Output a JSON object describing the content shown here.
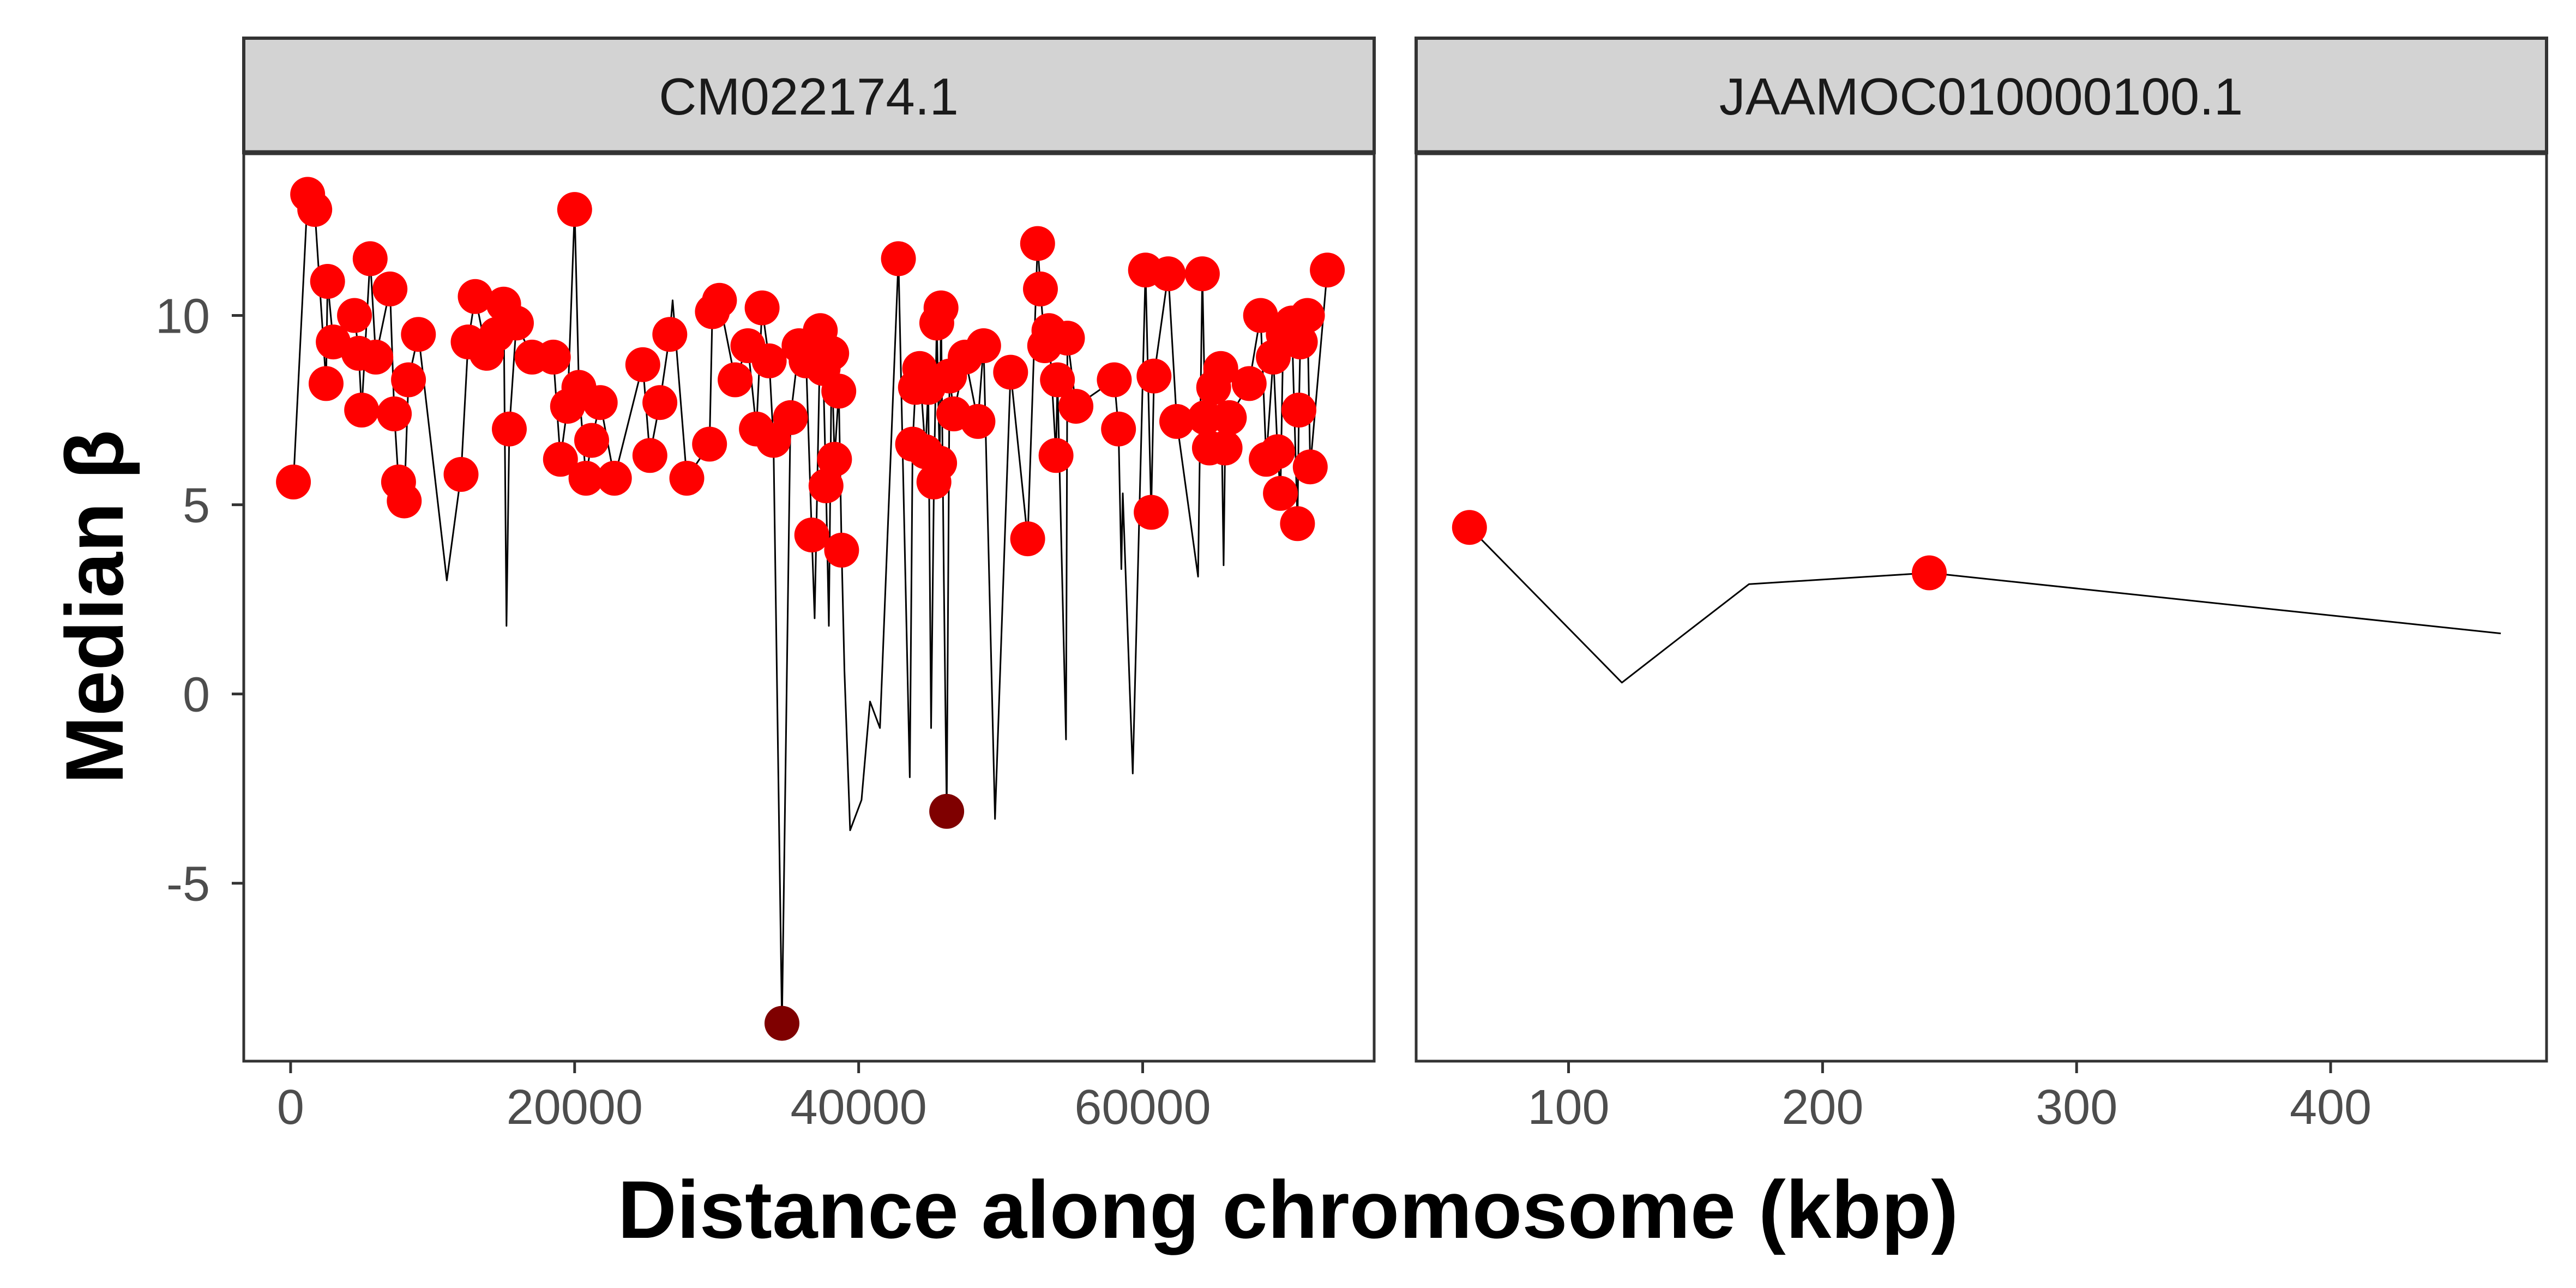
{
  "chart_data": {
    "type": "line",
    "xlabel": "Distance along chromosome (kbp)",
    "ylabel": "Median β",
    "ylim": [
      -9.7,
      14.3
    ],
    "yticks": [
      -5,
      0,
      5,
      10
    ],
    "colors": {
      "point": "#ff0000",
      "point_negative": "#7f0000",
      "line": "#000000",
      "strip": "#d3d3d3"
    },
    "panels": [
      {
        "name": "CM022174.1",
        "xlim": [
          -3300,
          76300
        ],
        "xticks": [
          0,
          20000,
          40000,
          60000
        ],
        "line": [
          [
            200,
            5.6
          ],
          [
            1200,
            13.2
          ],
          [
            1700,
            12.8
          ],
          [
            2500,
            8.2
          ],
          [
            2600,
            10.9
          ],
          [
            3000,
            9.3
          ],
          [
            4500,
            10.0
          ],
          [
            4800,
            9.0
          ],
          [
            5000,
            7.5
          ],
          [
            5600,
            11.5
          ],
          [
            6000,
            8.9
          ],
          [
            7000,
            10.7
          ],
          [
            7300,
            7.4
          ],
          [
            7600,
            5.6
          ],
          [
            8000,
            5.1
          ],
          [
            8300,
            8.3
          ],
          [
            9000,
            9.5
          ],
          [
            11000,
            3.0
          ],
          [
            12000,
            5.8
          ],
          [
            12500,
            9.3
          ],
          [
            13000,
            10.5
          ],
          [
            13800,
            9.0
          ],
          [
            14500,
            9.5
          ],
          [
            15000,
            10.3
          ],
          [
            15200,
            1.8
          ],
          [
            15400,
            7.0
          ],
          [
            15900,
            9.8
          ],
          [
            17000,
            8.9
          ],
          [
            18500,
            8.9
          ],
          [
            19000,
            6.2
          ],
          [
            19500,
            7.6
          ],
          [
            20000,
            12.8
          ],
          [
            20300,
            8.1
          ],
          [
            20800,
            5.7
          ],
          [
            21200,
            6.7
          ],
          [
            21800,
            7.7
          ],
          [
            22800,
            5.7
          ],
          [
            24800,
            8.7
          ],
          [
            25300,
            6.3
          ],
          [
            26000,
            7.7
          ],
          [
            26700,
            9.5
          ],
          [
            26900,
            10.4
          ],
          [
            27900,
            5.7
          ],
          [
            29500,
            6.6
          ],
          [
            29700,
            10.1
          ],
          [
            30200,
            10.4
          ],
          [
            31300,
            8.3
          ],
          [
            32200,
            9.2
          ],
          [
            32800,
            7.0
          ],
          [
            33200,
            10.2
          ],
          [
            33700,
            8.8
          ],
          [
            34000,
            6.7
          ],
          [
            34600,
            -8.7
          ],
          [
            35200,
            7.3
          ],
          [
            35800,
            9.2
          ],
          [
            36300,
            8.8
          ],
          [
            36700,
            4.2
          ],
          [
            36900,
            2.0
          ],
          [
            37300,
            9.6
          ],
          [
            37500,
            8.6
          ],
          [
            37700,
            5.5
          ],
          [
            37900,
            1.8
          ],
          [
            38100,
            9.0
          ],
          [
            38300,
            6.2
          ],
          [
            38600,
            8.0
          ],
          [
            38800,
            3.8
          ],
          [
            39000,
            0.6
          ],
          [
            39400,
            -3.6
          ],
          [
            40200,
            -2.8
          ],
          [
            40800,
            -0.2
          ],
          [
            41500,
            -0.9
          ],
          [
            42800,
            11.5
          ],
          [
            43600,
            -2.2
          ],
          [
            43800,
            6.6
          ],
          [
            44000,
            8.1
          ],
          [
            44300,
            8.6
          ],
          [
            44700,
            6.4
          ],
          [
            44900,
            8.1
          ],
          [
            45100,
            -0.9
          ],
          [
            45300,
            5.6
          ],
          [
            45500,
            9.8
          ],
          [
            45700,
            6.1
          ],
          [
            45800,
            10.2
          ],
          [
            46000,
            3.0
          ],
          [
            46200,
            -3.1
          ],
          [
            46400,
            8.4
          ],
          [
            46700,
            7.4
          ],
          [
            47500,
            8.9
          ],
          [
            48400,
            7.2
          ],
          [
            48800,
            9.2
          ],
          [
            49600,
            -3.3
          ],
          [
            50700,
            8.5
          ],
          [
            51900,
            4.1
          ],
          [
            52600,
            11.9
          ],
          [
            52800,
            10.7
          ],
          [
            53100,
            9.2
          ],
          [
            53400,
            9.6
          ],
          [
            53900,
            6.3
          ],
          [
            54000,
            8.3
          ],
          [
            54600,
            -1.2
          ],
          [
            54700,
            9.4
          ],
          [
            55300,
            7.6
          ],
          [
            58000,
            8.3
          ],
          [
            58300,
            7.0
          ],
          [
            58500,
            3.3
          ],
          [
            58600,
            5.3
          ],
          [
            59300,
            -2.1
          ],
          [
            60200,
            11.2
          ],
          [
            60600,
            4.8
          ],
          [
            60800,
            8.4
          ],
          [
            61800,
            11.1
          ],
          [
            62400,
            7.2
          ],
          [
            63900,
            3.1
          ],
          [
            64200,
            11.1
          ],
          [
            64400,
            7.3
          ],
          [
            64700,
            6.5
          ],
          [
            65000,
            8.1
          ],
          [
            65500,
            8.6
          ],
          [
            65700,
            3.4
          ],
          [
            65800,
            6.5
          ],
          [
            66100,
            7.3
          ],
          [
            67500,
            8.2
          ],
          [
            68300,
            10.0
          ],
          [
            68700,
            6.2
          ],
          [
            69200,
            8.9
          ],
          [
            69500,
            6.4
          ],
          [
            69700,
            5.3
          ],
          [
            69900,
            9.5
          ],
          [
            70500,
            9.8
          ],
          [
            70900,
            4.5
          ],
          [
            71000,
            7.5
          ],
          [
            71100,
            9.3
          ],
          [
            71600,
            10.0
          ],
          [
            71800,
            6.0
          ],
          [
            73000,
            11.2
          ]
        ],
        "points": [
          [
            200,
            5.6
          ],
          [
            1200,
            13.2
          ],
          [
            1700,
            12.8
          ],
          [
            2500,
            8.2
          ],
          [
            2600,
            10.9
          ],
          [
            3000,
            9.3
          ],
          [
            4500,
            10.0
          ],
          [
            4800,
            9.0
          ],
          [
            5000,
            7.5
          ],
          [
            5600,
            11.5
          ],
          [
            6000,
            8.9
          ],
          [
            7000,
            10.7
          ],
          [
            7300,
            7.4
          ],
          [
            7600,
            5.6
          ],
          [
            8000,
            5.1
          ],
          [
            8300,
            8.3
          ],
          [
            9000,
            9.5
          ],
          [
            12000,
            5.8
          ],
          [
            12500,
            9.3
          ],
          [
            13000,
            10.5
          ],
          [
            13800,
            9.0
          ],
          [
            14500,
            9.5
          ],
          [
            15000,
            10.3
          ],
          [
            15400,
            7.0
          ],
          [
            15900,
            9.8
          ],
          [
            17000,
            8.9
          ],
          [
            18500,
            8.9
          ],
          [
            19000,
            6.2
          ],
          [
            19500,
            7.6
          ],
          [
            20000,
            12.8
          ],
          [
            20300,
            8.1
          ],
          [
            20800,
            5.7
          ],
          [
            21200,
            6.7
          ],
          [
            21800,
            7.7
          ],
          [
            22800,
            5.7
          ],
          [
            24800,
            8.7
          ],
          [
            25300,
            6.3
          ],
          [
            26000,
            7.7
          ],
          [
            26700,
            9.5
          ],
          [
            27900,
            5.7
          ],
          [
            29500,
            6.6
          ],
          [
            29700,
            10.1
          ],
          [
            30200,
            10.4
          ],
          [
            31300,
            8.3
          ],
          [
            32200,
            9.2
          ],
          [
            32800,
            7.0
          ],
          [
            33200,
            10.2
          ],
          [
            33700,
            8.8
          ],
          [
            34000,
            6.7
          ],
          [
            35200,
            7.3
          ],
          [
            35800,
            9.2
          ],
          [
            36300,
            8.8
          ],
          [
            36700,
            4.2
          ],
          [
            37300,
            9.6
          ],
          [
            37500,
            8.6
          ],
          [
            37700,
            5.5
          ],
          [
            38100,
            9.0
          ],
          [
            38300,
            6.2
          ],
          [
            38600,
            8.0
          ],
          [
            38800,
            3.8
          ],
          [
            42800,
            11.5
          ],
          [
            43800,
            6.6
          ],
          [
            44000,
            8.1
          ],
          [
            44300,
            8.6
          ],
          [
            44700,
            6.4
          ],
          [
            44900,
            8.1
          ],
          [
            45300,
            5.6
          ],
          [
            45500,
            9.8
          ],
          [
            45700,
            6.1
          ],
          [
            45800,
            10.2
          ],
          [
            46400,
            8.4
          ],
          [
            46700,
            7.4
          ],
          [
            47500,
            8.9
          ],
          [
            48400,
            7.2
          ],
          [
            48800,
            9.2
          ],
          [
            50700,
            8.5
          ],
          [
            51900,
            4.1
          ],
          [
            52600,
            11.9
          ],
          [
            52800,
            10.7
          ],
          [
            53100,
            9.2
          ],
          [
            53400,
            9.6
          ],
          [
            53900,
            6.3
          ],
          [
            54000,
            8.3
          ],
          [
            54700,
            9.4
          ],
          [
            55300,
            7.6
          ],
          [
            58000,
            8.3
          ],
          [
            58300,
            7.0
          ],
          [
            60200,
            11.2
          ],
          [
            60600,
            4.8
          ],
          [
            60800,
            8.4
          ],
          [
            61800,
            11.1
          ],
          [
            62400,
            7.2
          ],
          [
            64200,
            11.1
          ],
          [
            64400,
            7.3
          ],
          [
            64700,
            6.5
          ],
          [
            65000,
            8.1
          ],
          [
            65500,
            8.6
          ],
          [
            65800,
            6.5
          ],
          [
            66100,
            7.3
          ],
          [
            67500,
            8.2
          ],
          [
            68300,
            10.0
          ],
          [
            68700,
            6.2
          ],
          [
            69200,
            8.9
          ],
          [
            69500,
            6.4
          ],
          [
            69700,
            5.3
          ],
          [
            69900,
            9.5
          ],
          [
            70500,
            9.8
          ],
          [
            70900,
            4.5
          ],
          [
            71000,
            7.5
          ],
          [
            71100,
            9.3
          ],
          [
            71600,
            10.0
          ],
          [
            71800,
            6.0
          ],
          [
            73000,
            11.2
          ]
        ],
        "points_negative": [
          [
            34600,
            -8.7
          ],
          [
            46200,
            -3.1
          ]
        ]
      },
      {
        "name": "JAAMOC010000100.1",
        "xlim": [
          40,
          485
        ],
        "xticks": [
          100,
          200,
          300,
          400
        ],
        "line": [
          [
            61,
            4.4
          ],
          [
            121,
            0.3
          ],
          [
            144,
            1.5
          ],
          [
            171,
            2.9
          ],
          [
            242,
            3.2
          ],
          [
            467,
            1.6
          ]
        ],
        "points": [
          [
            61,
            4.4
          ],
          [
            242,
            3.2
          ]
        ],
        "points_negative": []
      }
    ]
  }
}
